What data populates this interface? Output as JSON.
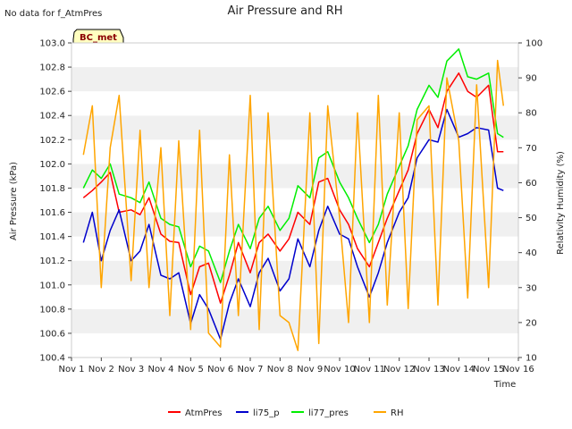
{
  "chart_data": {
    "type": "line",
    "title": "Air Pressure and RH",
    "note": "No data for f_AtmPres",
    "station_badge": "BC_met",
    "xlabel": "Time",
    "ylabel_left": "Air Pressure (kPa)",
    "ylabel_right": "Relativity Humidity (%)",
    "x_ticks": [
      "Nov 1",
      "Nov 2",
      "Nov 3",
      "Nov 4",
      "Nov 5",
      "Nov 6",
      "Nov 7",
      "Nov 8",
      "Nov 9",
      "Nov 10",
      "Nov 11",
      "Nov 12",
      "Nov 13",
      "Nov 14",
      "Nov 15",
      "Nov 16"
    ],
    "x_range_days": [
      1,
      16
    ],
    "ylim_left": [
      100.4,
      103.0
    ],
    "ylim_right": [
      10,
      100
    ],
    "y_ticks_left": [
      "100.4",
      "100.6",
      "100.8",
      "101.0",
      "101.2",
      "101.4",
      "101.6",
      "101.8",
      "102.0",
      "102.2",
      "102.4",
      "102.6",
      "102.8",
      "103.0"
    ],
    "y_ticks_right": [
      "10",
      "20",
      "30",
      "40",
      "50",
      "60",
      "70",
      "80",
      "90",
      "100"
    ],
    "grid": "horizontal bands",
    "legend_placement": "bottom",
    "x": [
      1.4,
      1.7,
      2.0,
      2.3,
      2.6,
      3.0,
      3.3,
      3.6,
      4.0,
      4.3,
      4.6,
      5.0,
      5.3,
      5.6,
      6.0,
      6.3,
      6.6,
      7.0,
      7.3,
      7.6,
      8.0,
      8.3,
      8.6,
      9.0,
      9.3,
      9.6,
      10.0,
      10.3,
      10.6,
      11.0,
      11.3,
      11.6,
      12.0,
      12.3,
      12.6,
      13.0,
      13.3,
      13.6,
      14.0,
      14.3,
      14.6,
      15.0,
      15.3,
      15.5
    ],
    "series": [
      {
        "name": "AtmPres",
        "color": "#ff0000",
        "axis": "left",
        "values": [
          101.72,
          101.78,
          101.85,
          101.93,
          101.6,
          101.62,
          101.58,
          101.72,
          101.42,
          101.36,
          101.35,
          100.92,
          101.15,
          101.18,
          100.85,
          101.08,
          101.35,
          101.1,
          101.35,
          101.42,
          101.28,
          101.38,
          101.6,
          101.5,
          101.85,
          101.88,
          101.62,
          101.5,
          101.3,
          101.15,
          101.35,
          101.55,
          101.78,
          101.95,
          102.25,
          102.45,
          102.3,
          102.6,
          102.75,
          102.6,
          102.55,
          102.65,
          102.1,
          102.1
        ]
      },
      {
        "name": "li75_p",
        "color": "#0000cc",
        "axis": "left",
        "values": [
          101.35,
          101.6,
          101.2,
          101.45,
          101.62,
          101.2,
          101.28,
          101.5,
          101.08,
          101.05,
          101.1,
          100.68,
          100.92,
          100.8,
          100.55,
          100.85,
          101.05,
          100.82,
          101.1,
          101.22,
          100.95,
          101.05,
          101.38,
          101.15,
          101.45,
          101.65,
          101.42,
          101.38,
          101.15,
          100.9,
          101.1,
          101.35,
          101.6,
          101.72,
          102.05,
          102.2,
          102.18,
          102.45,
          102.22,
          102.25,
          102.3,
          102.28,
          101.8,
          101.78
        ]
      },
      {
        "name": "li77_pres",
        "color": "#00ee00",
        "axis": "left",
        "values": [
          101.8,
          101.95,
          101.88,
          102.0,
          101.75,
          101.72,
          101.68,
          101.85,
          101.55,
          101.5,
          101.48,
          101.15,
          101.32,
          101.28,
          101.02,
          101.28,
          101.5,
          101.3,
          101.55,
          101.65,
          101.45,
          101.55,
          101.82,
          101.72,
          102.05,
          102.1,
          101.85,
          101.72,
          101.55,
          101.35,
          101.5,
          101.75,
          101.98,
          102.15,
          102.45,
          102.65,
          102.55,
          102.85,
          102.95,
          102.72,
          102.7,
          102.75,
          102.25,
          102.22
        ]
      },
      {
        "name": "RH",
        "color": "#ffa500",
        "axis": "right",
        "values": [
          68,
          82,
          30,
          70,
          85,
          32,
          75,
          30,
          70,
          22,
          72,
          18,
          75,
          17,
          13,
          68,
          22,
          85,
          18,
          80,
          22,
          20,
          12,
          80,
          14,
          82,
          50,
          20,
          80,
          20,
          85,
          25,
          80,
          24,
          78,
          82,
          25,
          90,
          72,
          27,
          88,
          30,
          95,
          82
        ]
      }
    ]
  }
}
